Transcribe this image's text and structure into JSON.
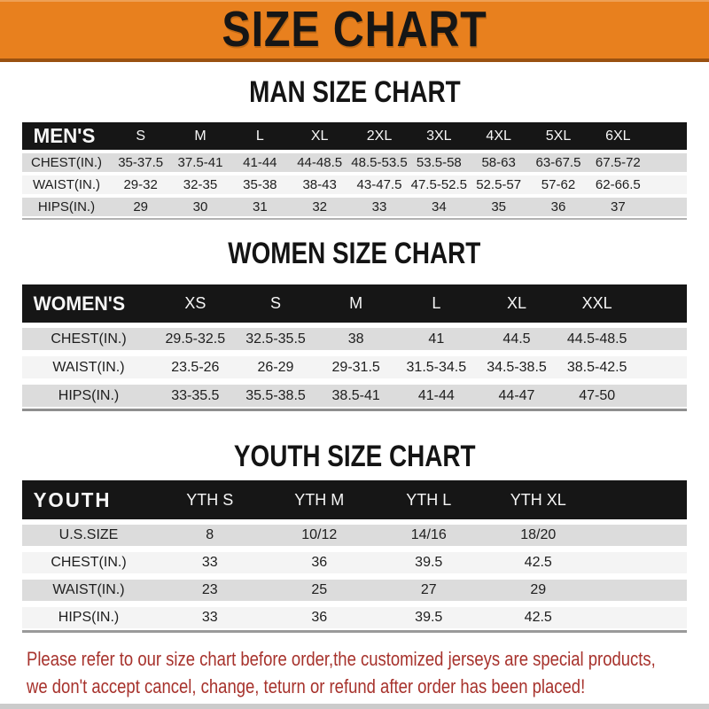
{
  "banner": {
    "title": "SIZE CHART"
  },
  "colors": {
    "banner_orange": "#E8801E",
    "header_band_black": "#161616",
    "row_gray": "#DCDCDC",
    "row_light": "#F4F4F4",
    "note_red": "#A7322C"
  },
  "sections": [
    {
      "heading": "MAN SIZE CHART",
      "table": {
        "label": "MEN'S",
        "columns": [
          "S",
          "M",
          "L",
          "XL",
          "2XL",
          "3XL",
          "4XL",
          "5XL",
          "6XL"
        ],
        "rows": [
          {
            "label": "CHEST(IN.)",
            "values": [
              "35-37.5",
              "37.5-41",
              "41-44",
              "44-48.5",
              "48.5-53.5",
              "53.5-58",
              "58-63",
              "63-67.5",
              "67.5-72"
            ]
          },
          {
            "label": "WAIST(IN.)",
            "values": [
              "29-32",
              "32-35",
              "35-38",
              "38-43",
              "43-47.5",
              "47.5-52.5",
              "52.5-57",
              "57-62",
              "62-66.5"
            ]
          },
          {
            "label": "HIPS(IN.)",
            "values": [
              "29",
              "30",
              "31",
              "32",
              "33",
              "34",
              "35",
              "36",
              "37"
            ]
          }
        ]
      }
    },
    {
      "heading": "WOMEN SIZE CHART",
      "table": {
        "label": "WOMEN'S",
        "columns": [
          "XS",
          "S",
          "M",
          "L",
          "XL",
          "XXL"
        ],
        "rows": [
          {
            "label": "CHEST(IN.)",
            "values": [
              "29.5-32.5",
              "32.5-35.5",
              "38",
              "41",
              "44.5",
              "44.5-48.5"
            ]
          },
          {
            "label": "WAIST(IN.)",
            "values": [
              "23.5-26",
              "26-29",
              "29-31.5",
              "31.5-34.5",
              "34.5-38.5",
              "38.5-42.5"
            ]
          },
          {
            "label": "HIPS(IN.)",
            "values": [
              "33-35.5",
              "35.5-38.5",
              "38.5-41",
              "41-44",
              "44-47",
              "47-50"
            ]
          }
        ]
      }
    },
    {
      "heading": "YOUTH SIZE CHART",
      "table": {
        "label": "YOUTH",
        "columns": [
          "YTH S",
          "YTH M",
          "YTH L",
          "YTH XL"
        ],
        "rows": [
          {
            "label": "U.S.SIZE",
            "values": [
              "8",
              "10/12",
              "14/16",
              "18/20"
            ]
          },
          {
            "label": "CHEST(IN.)",
            "values": [
              "33",
              "36",
              "39.5",
              "42.5"
            ]
          },
          {
            "label": "WAIST(IN.)",
            "values": [
              "23",
              "25",
              "27",
              "29"
            ]
          },
          {
            "label": "HIPS(IN.)",
            "values": [
              "33",
              "36",
              "39.5",
              "42.5"
            ]
          }
        ]
      }
    }
  ],
  "footer": {
    "line1": "Please refer to our size chart before order,the customized jerseys are special products,",
    "line2": "we don't accept cancel, change, teturn or refund after order has been placed!"
  }
}
